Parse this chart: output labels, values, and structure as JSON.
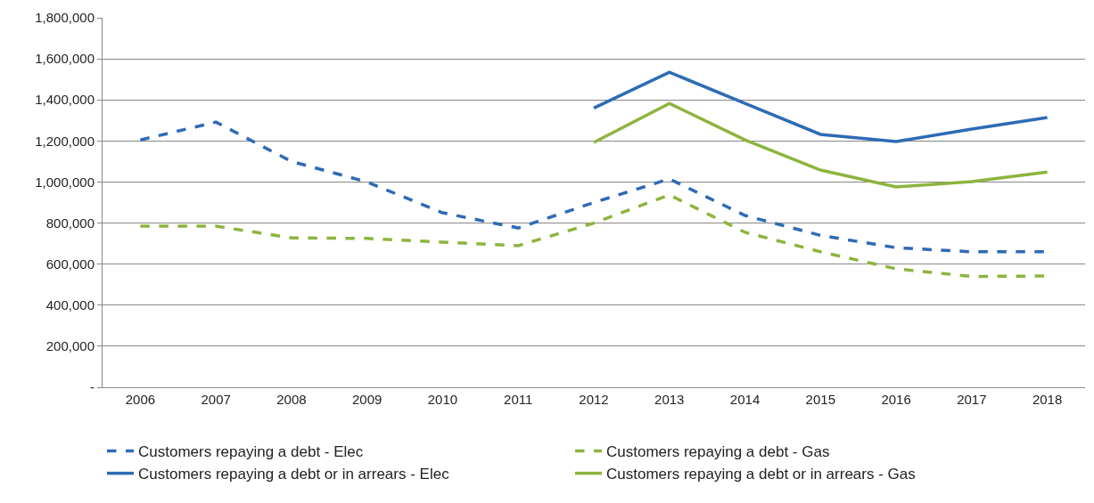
{
  "chart_data": {
    "type": "line",
    "categories": [
      "2006",
      "2007",
      "2008",
      "2009",
      "2010",
      "2011",
      "2012",
      "2013",
      "2014",
      "2015",
      "2016",
      "2017",
      "2018"
    ],
    "series": [
      {
        "name": "Customers repaying a debt - Elec",
        "color": "#2e6bb5",
        "line_style": "dashed",
        "values": [
          1205000,
          1292000,
          1100000,
          1000000,
          850000,
          776000,
          900000,
          1015000,
          837000,
          740000,
          680000,
          660000,
          660000
        ]
      },
      {
        "name": "Customers repaying a debt - Gas",
        "color": "#8db43e",
        "line_style": "dashed",
        "values": [
          785000,
          785000,
          728000,
          725000,
          707000,
          690000,
          800000,
          937000,
          755000,
          660000,
          577000,
          540000,
          542000
        ]
      },
      {
        "name": "Customers repaying a debt or in arrears - Elec",
        "color": "#2e6bb5",
        "line_style": "solid",
        "values": [
          null,
          null,
          null,
          null,
          null,
          null,
          1360000,
          1535000,
          1383000,
          1232000,
          1197000,
          1258000,
          1314000
        ]
      },
      {
        "name": "Customers repaying a debt or in arrears - Gas",
        "color": "#8db43e",
        "line_style": "solid",
        "values": [
          null,
          null,
          null,
          null,
          null,
          null,
          1193000,
          1383000,
          1205000,
          1058000,
          976000,
          1002000,
          1049000
        ]
      }
    ],
    "ylim": [
      0,
      1800000
    ],
    "yticks": [
      {
        "value": 0,
        "label": "-"
      },
      {
        "value": 200000,
        "label": "200,000"
      },
      {
        "value": 400000,
        "label": "400,000"
      },
      {
        "value": 600000,
        "label": "600,000"
      },
      {
        "value": 800000,
        "label": "800,000"
      },
      {
        "value": 1000000,
        "label": "1,000,000"
      },
      {
        "value": 1200000,
        "label": "1,200,000"
      },
      {
        "value": 1400000,
        "label": "1,400,000"
      },
      {
        "value": 1600000,
        "label": "1,600,000"
      },
      {
        "value": 1800000,
        "label": "1,800,000"
      }
    ],
    "grid": "y",
    "legend": "bottom",
    "marker": "none"
  }
}
